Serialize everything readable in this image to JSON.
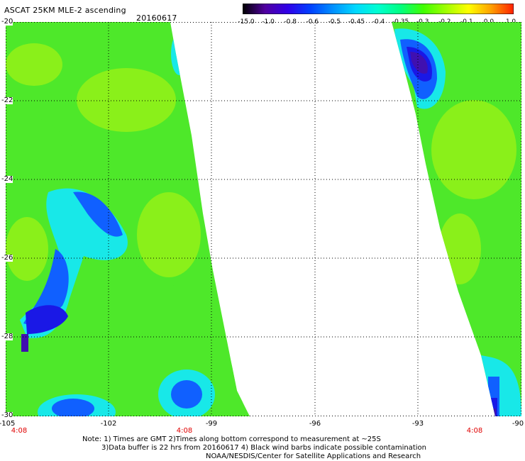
{
  "header": {
    "title": "ASCAT 25KM MLE-2 ascending",
    "date": "20160617"
  },
  "colorbar": {
    "labels": [
      "-15.0",
      "-1.0",
      "-0.8",
      "-0.6",
      "-0.5",
      "-0.45",
      "-0.4",
      "-0.35",
      "-0.3",
      "-0.2",
      "-0.1",
      "0.0",
      "1.0"
    ],
    "colors": [
      "#000000",
      "#5000a0",
      "#3000e8",
      "#0040ff",
      "#0090ff",
      "#00d8ff",
      "#00ffd0",
      "#00ff80",
      "#40ff00",
      "#a0ff00",
      "#ffff00",
      "#ffa000",
      "#ff2000"
    ]
  },
  "map": {
    "lat_labels": [
      "-20",
      "-22",
      "-24",
      "-26",
      "-28",
      "-30"
    ],
    "lon_labels": [
      "-105",
      "-102",
      "-99",
      "-96",
      "-93",
      "-90"
    ],
    "time_labels": [
      "4:08",
      "4:08",
      "4:08"
    ],
    "swath_colors": {
      "green": "#4ee82a",
      "lime": "#8af01a",
      "cyan": "#18e8e8",
      "blue": "#1060ff",
      "deepblue": "#1a18e6",
      "purple": "#4010b0"
    }
  },
  "notes": {
    "line1": "Note: 1) Times are GMT 2)Times along bottom correspond to measurement at ~25S",
    "line2": "3)Data buffer is 22 hrs from 20160617 4) Black wind barbs indicate possible contamination",
    "line3": "NOAA/NESDIS/Center for Satellite Applications and Research"
  }
}
